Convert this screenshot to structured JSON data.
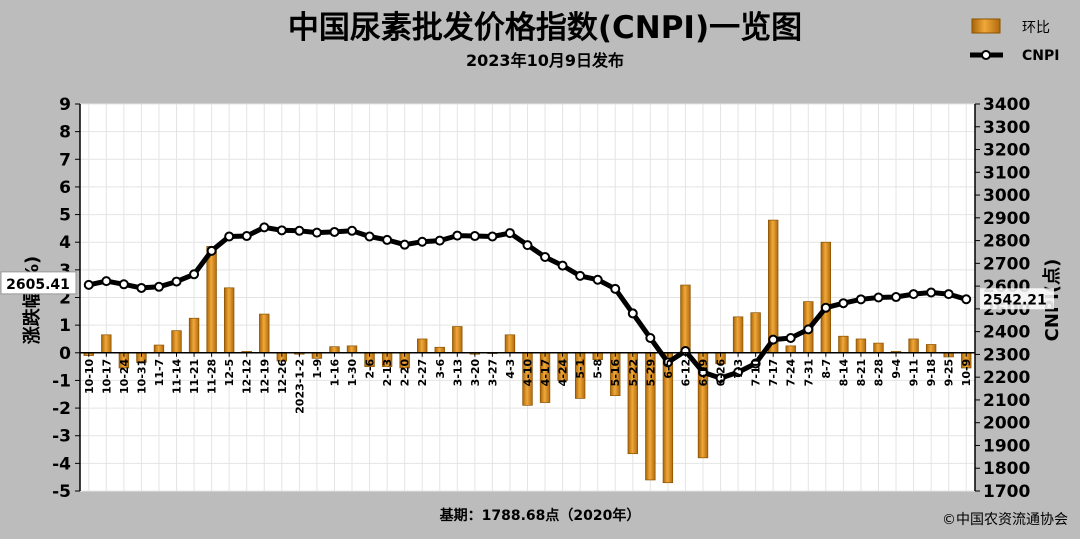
{
  "title": "中国尿素批发价格指数(CNPI)一览图",
  "subtitle": "2023年10月9日发布",
  "footer_base": "基期：1788.68点（2020年）",
  "footer_copyright": "©中国农资流通协会",
  "colors": {
    "background": "#bcbcbc",
    "plot": "#ffffff",
    "bar": "#d98e1f",
    "bar_edge": "#8a5200",
    "line": "#000000",
    "grid": "#e4e4e4"
  },
  "chart_data": {
    "type": "bar+line",
    "legend_position": "top-right",
    "legend": [
      "环比",
      "CNPI"
    ],
    "ylabel_left": "涨跌幅(%)",
    "ylabel_right": "CNPI(点)",
    "ylim_left": [
      -5,
      9
    ],
    "ylim_right": [
      1700,
      3400
    ],
    "yticks_left": [
      "9",
      "8",
      "7",
      "6",
      "5",
      "4",
      "3",
      "2",
      "1",
      "0",
      "-1",
      "-2",
      "-3",
      "-4",
      "-5"
    ],
    "yticks_right": [
      "3400",
      "3300",
      "3200",
      "3100",
      "3000",
      "2900",
      "2800",
      "2700",
      "2600",
      "2500",
      "2400",
      "2300",
      "2200",
      "2100",
      "2000",
      "1900",
      "1800",
      "1700"
    ],
    "first_value_label": "2605.41",
    "last_value_label": "2542.21",
    "categories": [
      "10-10",
      "10-17",
      "10-24",
      "10-31",
      "11-7",
      "11-14",
      "11-21",
      "11-28",
      "12-5",
      "12-12",
      "12-19",
      "12-26",
      "2023-1-2",
      "1-9",
      "1-16",
      "1-30",
      "2-6",
      "2-13",
      "2-20",
      "2-27",
      "3-6",
      "3-13",
      "3-20",
      "3-27",
      "4-3",
      "4-10",
      "4-17",
      "4-24",
      "5-1",
      "5-8",
      "5-16",
      "5-22",
      "5-29",
      "6-5",
      "6-12",
      "6-19",
      "6-26",
      "7-3",
      "7-10",
      "7-17",
      "7-24",
      "7-31",
      "8-7",
      "8-14",
      "8-21",
      "8-28",
      "9-4",
      "9-11",
      "9-18",
      "9-25",
      "10-9"
    ],
    "series": [
      {
        "name": "环比",
        "kind": "bar",
        "values": [
          -0.1,
          0.65,
          -0.55,
          -0.35,
          0.28,
          0.8,
          1.25,
          3.85,
          2.35,
          0.05,
          1.4,
          -0.3,
          -0.05,
          -0.2,
          0.22,
          0.25,
          -0.5,
          -0.5,
          -0.55,
          0.5,
          0.2,
          0.95,
          -0.05,
          0.0,
          0.65,
          -1.9,
          -1.8,
          -1.0,
          -1.65,
          -0.25,
          -1.55,
          -3.65,
          -4.6,
          -4.7,
          2.45,
          -3.8,
          -0.4,
          1.3,
          1.45,
          4.8,
          0.25,
          1.85,
          4.0,
          0.6,
          0.5,
          0.35,
          0.05,
          0.5,
          0.3,
          -0.15,
          -0.55
        ]
      },
      {
        "name": "CNPI",
        "kind": "line",
        "values": [
          2605.41,
          2622,
          2608,
          2592,
          2597,
          2620,
          2652,
          2755,
          2818,
          2820,
          2858,
          2845,
          2843,
          2835,
          2838,
          2843,
          2818,
          2803,
          2782,
          2795,
          2800,
          2822,
          2820,
          2818,
          2833,
          2780,
          2728,
          2690,
          2645,
          2628,
          2588,
          2480,
          2372,
          2265,
          2315,
          2222,
          2196,
          2222,
          2260,
          2365,
          2372,
          2410,
          2505,
          2525,
          2542,
          2550,
          2552,
          2565,
          2572,
          2565,
          2542.21
        ]
      }
    ]
  }
}
